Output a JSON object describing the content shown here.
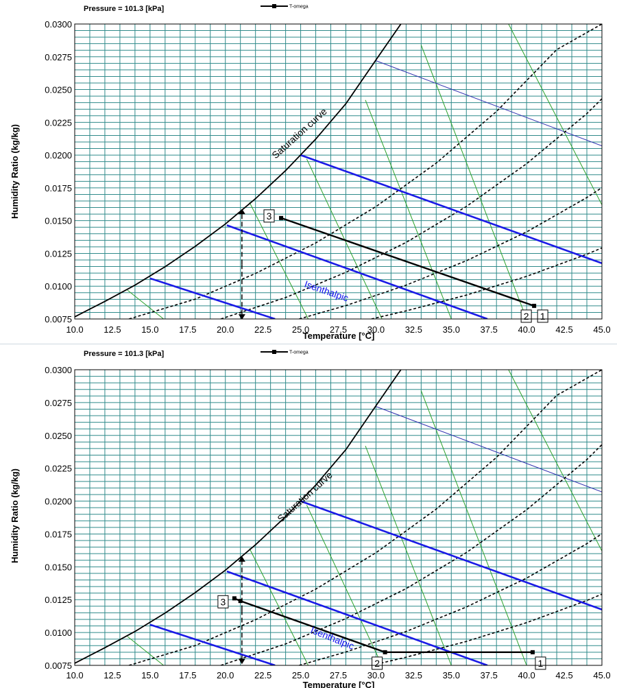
{
  "chart_data": [
    {
      "type": "line",
      "pressure_label": "Pressure = 101.3 [kPa]",
      "legend": "T-omega",
      "xlabel": "Temperature [°C]",
      "ylabel": "Humidity Ratio (kg/kg)",
      "xlim": [
        10.0,
        45.0
      ],
      "ylim": [
        0.0075,
        0.03
      ],
      "x_ticks": [
        "10.0",
        "12.5",
        "15.0",
        "17.5",
        "20.0",
        "22.5",
        "25.0",
        "27.5",
        "30.0",
        "32.5",
        "35.0",
        "37.5",
        "40.0",
        "42.5",
        "45.0"
      ],
      "y_ticks": [
        "0.0075",
        "0.0100",
        "0.0125",
        "0.0150",
        "0.0175",
        "0.0200",
        "0.0225",
        "0.0250",
        "0.0275",
        "0.0300"
      ],
      "grid": true,
      "saturation_label": "Saturation curve",
      "isenthalpic_label": "Isenthalpic",
      "saturation_curve": {
        "x": [
          10,
          12,
          14,
          16,
          18,
          20,
          22,
          24,
          26,
          28,
          30,
          32
        ],
        "y": [
          0.00766,
          0.00884,
          0.01008,
          0.01148,
          0.01304,
          0.01474,
          0.01668,
          0.01882,
          0.02122,
          0.02392,
          0.02726,
          0.03058
        ]
      },
      "rh_curves": [
        {
          "x": [
            13.6,
            18,
            22,
            26,
            30,
            34,
            38,
            42,
            45
          ],
          "y": [
            0.0075,
            0.00901,
            0.01097,
            0.0133,
            0.01607,
            0.01939,
            0.02333,
            0.02805,
            0.03
          ]
        },
        {
          "x": [
            19.7,
            24,
            28,
            32,
            36,
            40,
            44,
            45
          ],
          "y": [
            0.0075,
            0.00913,
            0.01106,
            0.01334,
            0.01608,
            0.01934,
            0.02316,
            0.0243
          ]
        },
        {
          "x": [
            24.9,
            28,
            32,
            36,
            40,
            44,
            45
          ],
          "y": [
            0.0075,
            0.00852,
            0.01008,
            0.01194,
            0.01414,
            0.01676,
            0.01752
          ]
        },
        {
          "x": [
            29.7,
            32,
            36,
            40,
            44,
            45
          ],
          "y": [
            0.0075,
            0.00812,
            0.00932,
            0.01075,
            0.01244,
            0.01292
          ]
        }
      ],
      "isenthalpic_lines": [
        {
          "x": [
            15.0,
            23.3
          ],
          "y": [
            0.0106,
            0.0075
          ]
        },
        {
          "x": [
            20.1,
            37.4
          ],
          "y": [
            0.01465,
            0.0075
          ]
        },
        {
          "x": [
            25.0,
            45.0
          ],
          "y": [
            0.02,
            0.01175
          ]
        }
      ],
      "wet_bulb_lines": [
        {
          "x": [
            13.5,
            15.9
          ],
          "y": [
            0.0097,
            0.0075
          ]
        },
        {
          "x": [
            21.6,
            25.5
          ],
          "y": [
            0.0164,
            0.0075
          ]
        },
        {
          "x": [
            25.4,
            30.4
          ],
          "y": [
            0.0197,
            0.0075
          ]
        },
        {
          "x": [
            29.3,
            35.0
          ],
          "y": [
            0.0242,
            0.0075
          ]
        },
        {
          "x": [
            33.0,
            40.0
          ],
          "y": [
            0.0284,
            0.0075
          ]
        },
        {
          "x": [
            38.8,
            45.0
          ],
          "y": [
            0.03,
            0.0162
          ]
        }
      ],
      "thin_line": {
        "x": [
          30.0,
          45.0
        ],
        "y": [
          0.0272,
          0.0207
        ]
      },
      "vertical_arrow": {
        "x": 21.1,
        "y": [
          0.00765,
          0.0157
        ]
      },
      "series": [
        {
          "name": "T-omega",
          "x": [
            40.5,
            23.7
          ],
          "y": [
            0.0085,
            0.0152
          ]
        }
      ],
      "points": [
        {
          "label": "1",
          "x": 40.5,
          "y": 0.0085
        },
        {
          "label": "2",
          "x": 40.5,
          "y": 0.0085
        },
        {
          "label": "3",
          "x": 23.7,
          "y": 0.0152
        }
      ]
    },
    {
      "type": "line",
      "pressure_label": "Pressure = 101.3 [kPa]",
      "legend": "T-omega",
      "xlabel": "Temperature [°C]",
      "ylabel": "Humidity Ratio (kg/kg)",
      "xlim": [
        10.0,
        45.0
      ],
      "ylim": [
        0.0075,
        0.03
      ],
      "x_ticks": [
        "10.0",
        "12.5",
        "15.0",
        "17.5",
        "20.0",
        "22.5",
        "25.0",
        "27.5",
        "30.0",
        "32.5",
        "35.0",
        "37.5",
        "40.0",
        "42.5",
        "45.0"
      ],
      "y_ticks": [
        "0.0075",
        "0.0100",
        "0.0125",
        "0.0150",
        "0.0175",
        "0.0200",
        "0.0225",
        "0.0250",
        "0.0275",
        "0.0300"
      ],
      "grid": true,
      "saturation_label": "Saturation curve",
      "isenthalpic_label": "Isenthalpic",
      "saturation_curve": {
        "x": [
          10,
          12,
          14,
          16,
          18,
          20,
          22,
          24,
          26,
          28,
          30,
          32
        ],
        "y": [
          0.00766,
          0.00884,
          0.01008,
          0.01148,
          0.01304,
          0.01474,
          0.01668,
          0.01882,
          0.02122,
          0.02392,
          0.02726,
          0.03058
        ]
      },
      "rh_curves": [
        {
          "x": [
            13.6,
            18,
            22,
            26,
            30,
            34,
            38,
            42,
            45
          ],
          "y": [
            0.0075,
            0.00901,
            0.01097,
            0.0133,
            0.01607,
            0.01939,
            0.02333,
            0.02805,
            0.03
          ]
        },
        {
          "x": [
            19.7,
            24,
            28,
            32,
            36,
            40,
            44,
            45
          ],
          "y": [
            0.0075,
            0.00913,
            0.01106,
            0.01334,
            0.01608,
            0.01934,
            0.02316,
            0.0243
          ]
        },
        {
          "x": [
            24.9,
            28,
            32,
            36,
            40,
            44,
            45
          ],
          "y": [
            0.0075,
            0.00852,
            0.01008,
            0.01194,
            0.01414,
            0.01676,
            0.01752
          ]
        },
        {
          "x": [
            29.7,
            32,
            36,
            40,
            44,
            45
          ],
          "y": [
            0.0075,
            0.00812,
            0.00932,
            0.01075,
            0.01244,
            0.01292
          ]
        }
      ],
      "isenthalpic_lines": [
        {
          "x": [
            15.0,
            23.3
          ],
          "y": [
            0.0106,
            0.0075
          ]
        },
        {
          "x": [
            20.1,
            37.4
          ],
          "y": [
            0.01465,
            0.0075
          ]
        },
        {
          "x": [
            25.0,
            45.0
          ],
          "y": [
            0.02,
            0.01175
          ]
        }
      ],
      "wet_bulb_lines": [
        {
          "x": [
            13.5,
            15.9
          ],
          "y": [
            0.0097,
            0.0075
          ]
        },
        {
          "x": [
            21.6,
            25.5
          ],
          "y": [
            0.0164,
            0.0075
          ]
        },
        {
          "x": [
            25.4,
            30.4
          ],
          "y": [
            0.0197,
            0.0075
          ]
        },
        {
          "x": [
            29.3,
            35.0
          ],
          "y": [
            0.0242,
            0.0075
          ]
        },
        {
          "x": [
            33.0,
            40.0
          ],
          "y": [
            0.0284,
            0.0075
          ]
        },
        {
          "x": [
            38.8,
            45.0
          ],
          "y": [
            0.03,
            0.0162
          ]
        }
      ],
      "thin_line": {
        "x": [
          30.0,
          45.0
        ],
        "y": [
          0.0272,
          0.0207
        ]
      },
      "vertical_arrow": {
        "x": 21.1,
        "y": [
          0.0078,
          0.0156
        ]
      },
      "series": [
        {
          "name": "T-omega",
          "x": [
            40.4,
            30.6,
            21.0,
            20.6
          ],
          "y": [
            0.0085,
            0.0085,
            0.0124,
            0.0126
          ]
        }
      ],
      "points": [
        {
          "label": "1",
          "x": 40.4,
          "y": 0.0085
        },
        {
          "label": "2",
          "x": 30.6,
          "y": 0.0085
        },
        {
          "label": "3",
          "x": 20.6,
          "y": 0.0126
        }
      ]
    }
  ]
}
